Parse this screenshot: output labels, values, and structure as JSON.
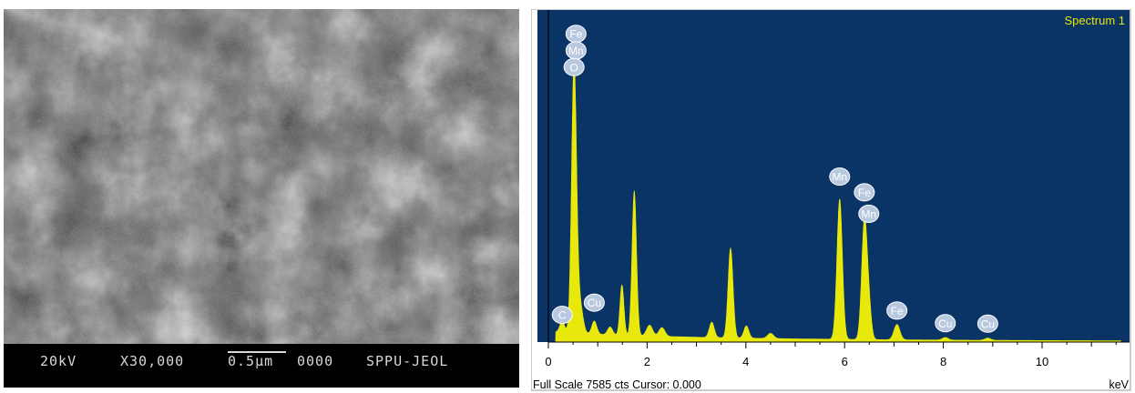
{
  "sem": {
    "voltage": "20kV",
    "magnification": "X30,000",
    "scale_bar_label": "0.5µm",
    "image_number": "0000",
    "instrument": "SPPU-JEOL"
  },
  "eds": {
    "spectrum_title": "Spectrum 1",
    "full_scale_counts": 7585,
    "status_line": "Full Scale 7585 cts Cursor: 0.000",
    "x_unit": "keV",
    "colors": {
      "plot_bg": "#0a3366",
      "spectrum": "#e8e80a",
      "title": "#e8e80a",
      "label_bubble": "#b8c8de"
    }
  },
  "chart_data": {
    "type": "area",
    "title": "Spectrum 1",
    "xlabel": "keV",
    "ylabel": "",
    "xlim": [
      0,
      11.6
    ],
    "ylim": [
      0,
      7585
    ],
    "xticks": [
      0,
      2,
      4,
      6,
      8,
      10
    ],
    "grid": false,
    "series": [
      {
        "peaks": [
          {
            "energy": 0.28,
            "counts": 250,
            "width": 0.05
          },
          {
            "energy": 0.52,
            "counts": 6150,
            "width": 0.05
          },
          {
            "energy": 0.64,
            "counts": 650,
            "width": 0.06
          },
          {
            "energy": 0.93,
            "counts": 300,
            "width": 0.05
          },
          {
            "energy": 1.25,
            "counts": 180,
            "width": 0.05
          },
          {
            "energy": 1.49,
            "counts": 1150,
            "width": 0.04
          },
          {
            "energy": 1.74,
            "counts": 3300,
            "width": 0.045
          },
          {
            "energy": 2.05,
            "counts": 250,
            "width": 0.06
          },
          {
            "energy": 2.3,
            "counts": 200,
            "width": 0.06
          },
          {
            "energy": 3.31,
            "counts": 350,
            "width": 0.05
          },
          {
            "energy": 3.69,
            "counts": 2050,
            "width": 0.05
          },
          {
            "energy": 4.01,
            "counts": 280,
            "width": 0.05
          },
          {
            "energy": 4.5,
            "counts": 120,
            "width": 0.06
          },
          {
            "energy": 5.9,
            "counts": 3200,
            "width": 0.055
          },
          {
            "energy": 6.4,
            "counts": 2650,
            "width": 0.055
          },
          {
            "energy": 6.49,
            "counts": 700,
            "width": 0.05
          },
          {
            "energy": 7.06,
            "counts": 350,
            "width": 0.06
          },
          {
            "energy": 8.04,
            "counts": 60,
            "width": 0.06
          },
          {
            "energy": 8.9,
            "counts": 50,
            "width": 0.06
          }
        ]
      }
    ],
    "element_labels": [
      {
        "text": "Fe",
        "energy": 0.56,
        "counts": 7040
      },
      {
        "text": "Mn",
        "energy": 0.56,
        "counts": 6660
      },
      {
        "text": "O",
        "energy": 0.52,
        "counts": 6280
      },
      {
        "text": "C",
        "energy": 0.28,
        "counts": 620
      },
      {
        "text": "Cu",
        "energy": 0.93,
        "counts": 900
      },
      {
        "text": "Mn",
        "energy": 5.9,
        "counts": 3780
      },
      {
        "text": "Fe",
        "energy": 6.4,
        "counts": 3420
      },
      {
        "text": "Mn",
        "energy": 6.49,
        "counts": 2930
      },
      {
        "text": "Fe",
        "energy": 7.06,
        "counts": 720
      },
      {
        "text": "Cu",
        "energy": 8.04,
        "counts": 430
      },
      {
        "text": "Cu",
        "energy": 8.9,
        "counts": 420
      }
    ]
  }
}
